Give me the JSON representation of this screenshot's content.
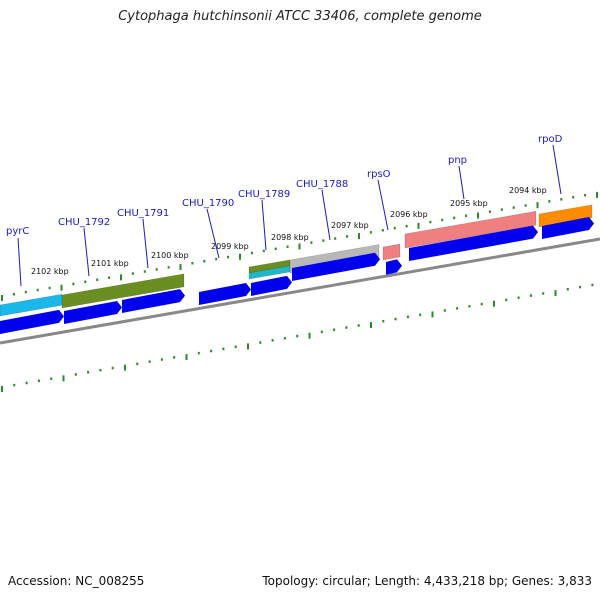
{
  "title": "Cytophaga hutchinsonii ATCC 33406, complete genome",
  "footer": {
    "accession": "Accession: NC_008255",
    "stats": "Topology: circular; Length: 4,433,218 bp; Genes: 3,833"
  },
  "colors": {
    "tick": "#2a8a2a",
    "cds": "#0000ee",
    "backbone": "#888888",
    "gene_label": "#1a1ac8"
  },
  "kbp_labels": [
    "2102 kbp",
    "2101 kbp",
    "2100 kbp",
    "2099 kbp",
    "2098 kbp",
    "2097 kbp",
    "2096 kbp",
    "2095 kbp",
    "2094 kbp"
  ],
  "gene_labels": [
    "pyrC",
    "CHU_1792",
    "CHU_1791",
    "CHU_1790",
    "CHU_1789",
    "CHU_1788",
    "rpsO",
    "pnp",
    "rpoD"
  ],
  "feature_bars": [
    {
      "name": "pyrC-feature",
      "color": "#1ab8e8"
    },
    {
      "name": "chu1792-feature",
      "color": "#6b8e23"
    },
    {
      "name": "chu1789-feature-a",
      "color": "#6b8e23"
    },
    {
      "name": "chu1789-feature-b",
      "color": "#20b8c8"
    },
    {
      "name": "chu1788-feature",
      "color": "#b8b8b8"
    },
    {
      "name": "rpso-feature",
      "color": "#f08080"
    },
    {
      "name": "pnp-feature",
      "color": "#f08080"
    },
    {
      "name": "rpod-feature",
      "color": "#ff8c00"
    }
  ],
  "cds_arrows": [
    "pyrC",
    "CHU_1792",
    "CHU_1791",
    "CHU_1790",
    "CHU_1789",
    "CHU_1788",
    "rpsO",
    "pnp",
    "rpoD"
  ]
}
